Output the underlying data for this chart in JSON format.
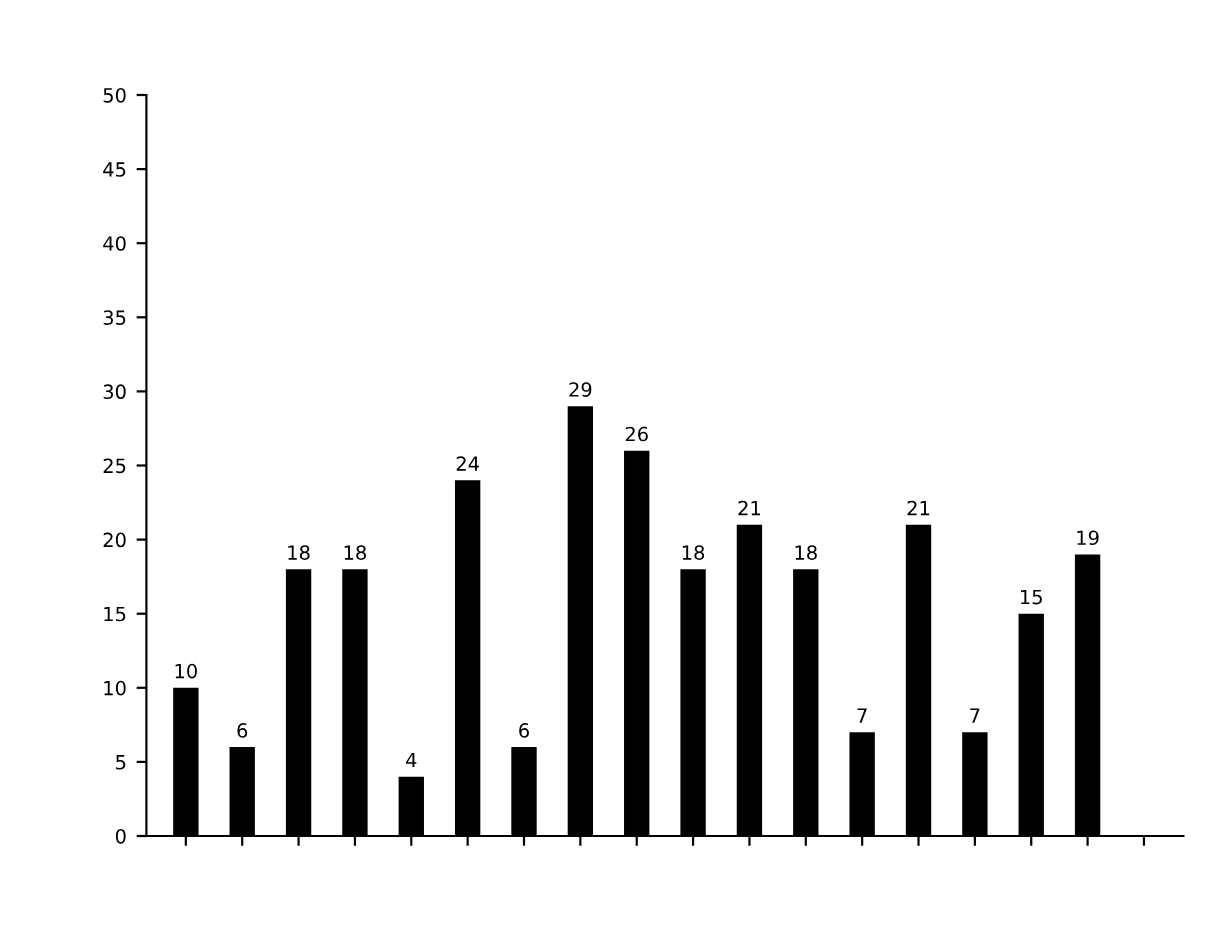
{
  "chart_data": {
    "type": "bar",
    "categories": [
      null,
      null,
      null,
      null,
      null,
      null,
      null,
      null,
      null,
      null,
      null,
      null,
      null,
      null,
      null,
      null,
      null,
      null
    ],
    "values": [
      10,
      6,
      18,
      18,
      4,
      24,
      6,
      29,
      26,
      18,
      21,
      18,
      7,
      21,
      7,
      15,
      19,
      null
    ],
    "color": "#000000",
    "ylim": [
      0,
      50
    ],
    "yticks": [
      0,
      5,
      10,
      15,
      20,
      25,
      30,
      35,
      40,
      45,
      50
    ],
    "data_labels": true,
    "grid": false
  }
}
